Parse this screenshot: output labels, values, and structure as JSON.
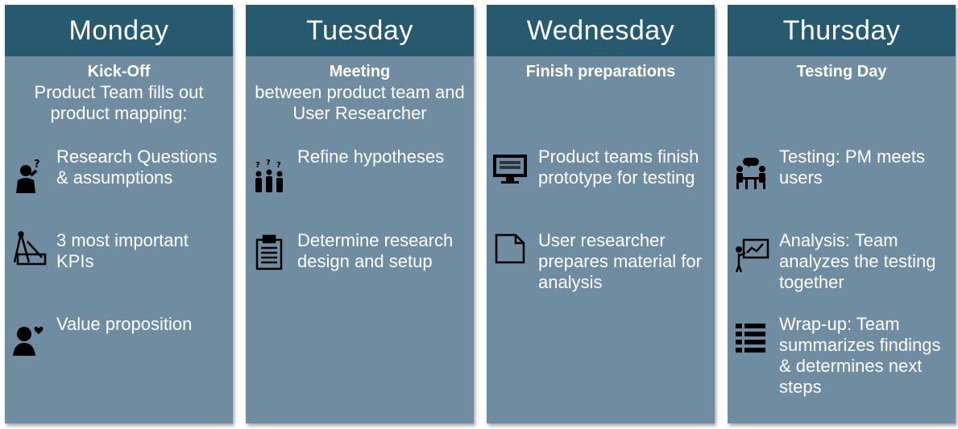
{
  "days": [
    {
      "name": "Monday",
      "title": "Kick-Off",
      "subtitle": "Product Team fills out product mapping:",
      "items": [
        {
          "icon": "thinking-person-icon",
          "text": "Research Questions & assumptions"
        },
        {
          "icon": "drafting-tools-icon",
          "text": "3 most important KPIs"
        },
        {
          "icon": "person-heart-icon",
          "text": "Value proposition"
        }
      ]
    },
    {
      "name": "Tuesday",
      "title": "Meeting",
      "subtitle": "between product team and User Researcher",
      "items": [
        {
          "icon": "group-questions-icon",
          "text": "Refine hypotheses"
        },
        {
          "icon": "clipboard-icon",
          "text": "Determine research design and setup"
        }
      ]
    },
    {
      "name": "Wednesday",
      "title": "Finish preparations",
      "items": [
        {
          "icon": "monitor-icon",
          "text": "Product teams finish prototype for testing"
        },
        {
          "icon": "document-icon",
          "text": "User researcher prepares material for analysis"
        }
      ]
    },
    {
      "name": "Thursday",
      "title": "Testing Day",
      "items": [
        {
          "icon": "meeting-users-icon",
          "text": "Testing: PM meets users"
        },
        {
          "icon": "presentation-icon",
          "text": "Analysis: Team analyzes the testing together"
        },
        {
          "icon": "list-icon",
          "text": "Wrap-up: Team summarizes findings & determines next steps"
        }
      ]
    }
  ]
}
